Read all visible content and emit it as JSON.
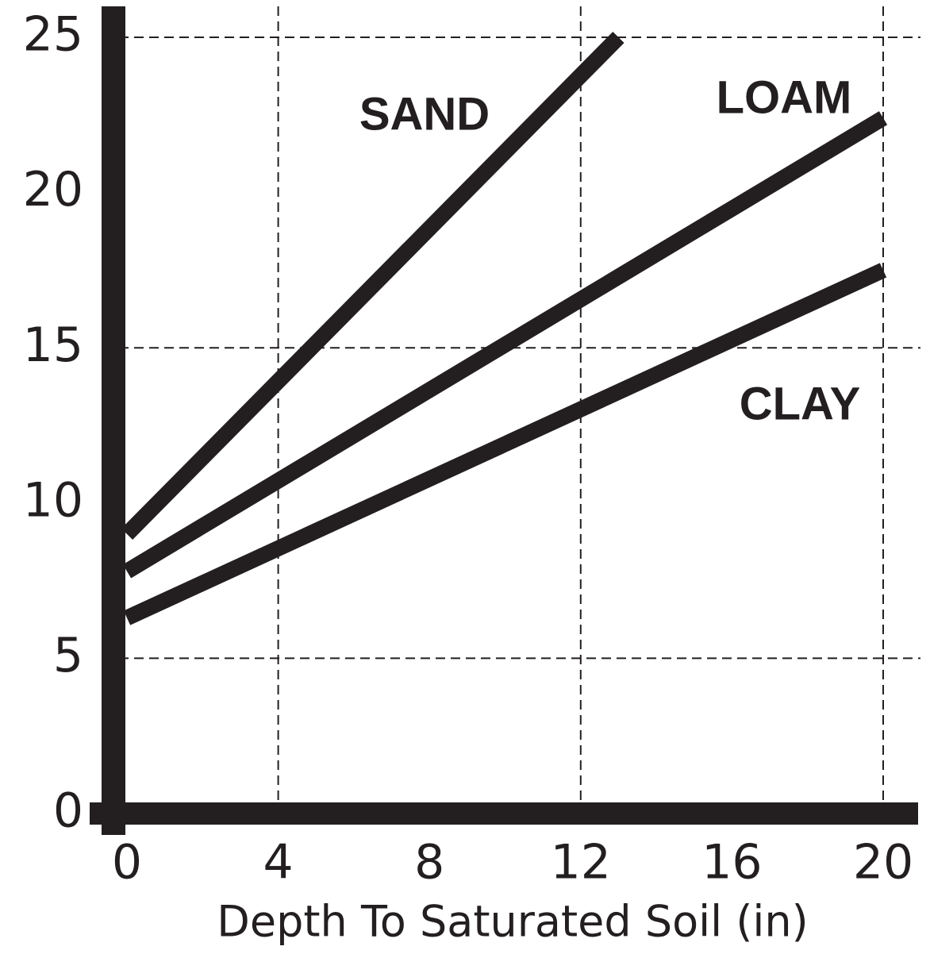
{
  "chart_data": {
    "type": "line",
    "x_label": "Depth To Saturated Soil (in)",
    "xlim": [
      0,
      20
    ],
    "xticks": [
      0,
      4,
      8,
      12,
      16,
      20
    ],
    "ylim": [
      0,
      25
    ],
    "yticks": [
      0,
      5,
      10,
      15,
      20,
      25
    ],
    "x_grid_lines": [
      4,
      12,
      20
    ],
    "y_grid_lines": [
      5,
      15,
      25
    ],
    "grid": true,
    "series": [
      {
        "name": "SAND",
        "color": "#231f20",
        "x": [
          0,
          13
        ],
        "values": [
          9,
          25
        ]
      },
      {
        "name": "LOAM",
        "color": "#231f20",
        "x": [
          0,
          20
        ],
        "values": [
          7.8,
          22.4
        ]
      },
      {
        "name": "CLAY",
        "color": "#231f20",
        "x": [
          0,
          20
        ],
        "values": [
          6.3,
          17.5
        ]
      }
    ]
  }
}
